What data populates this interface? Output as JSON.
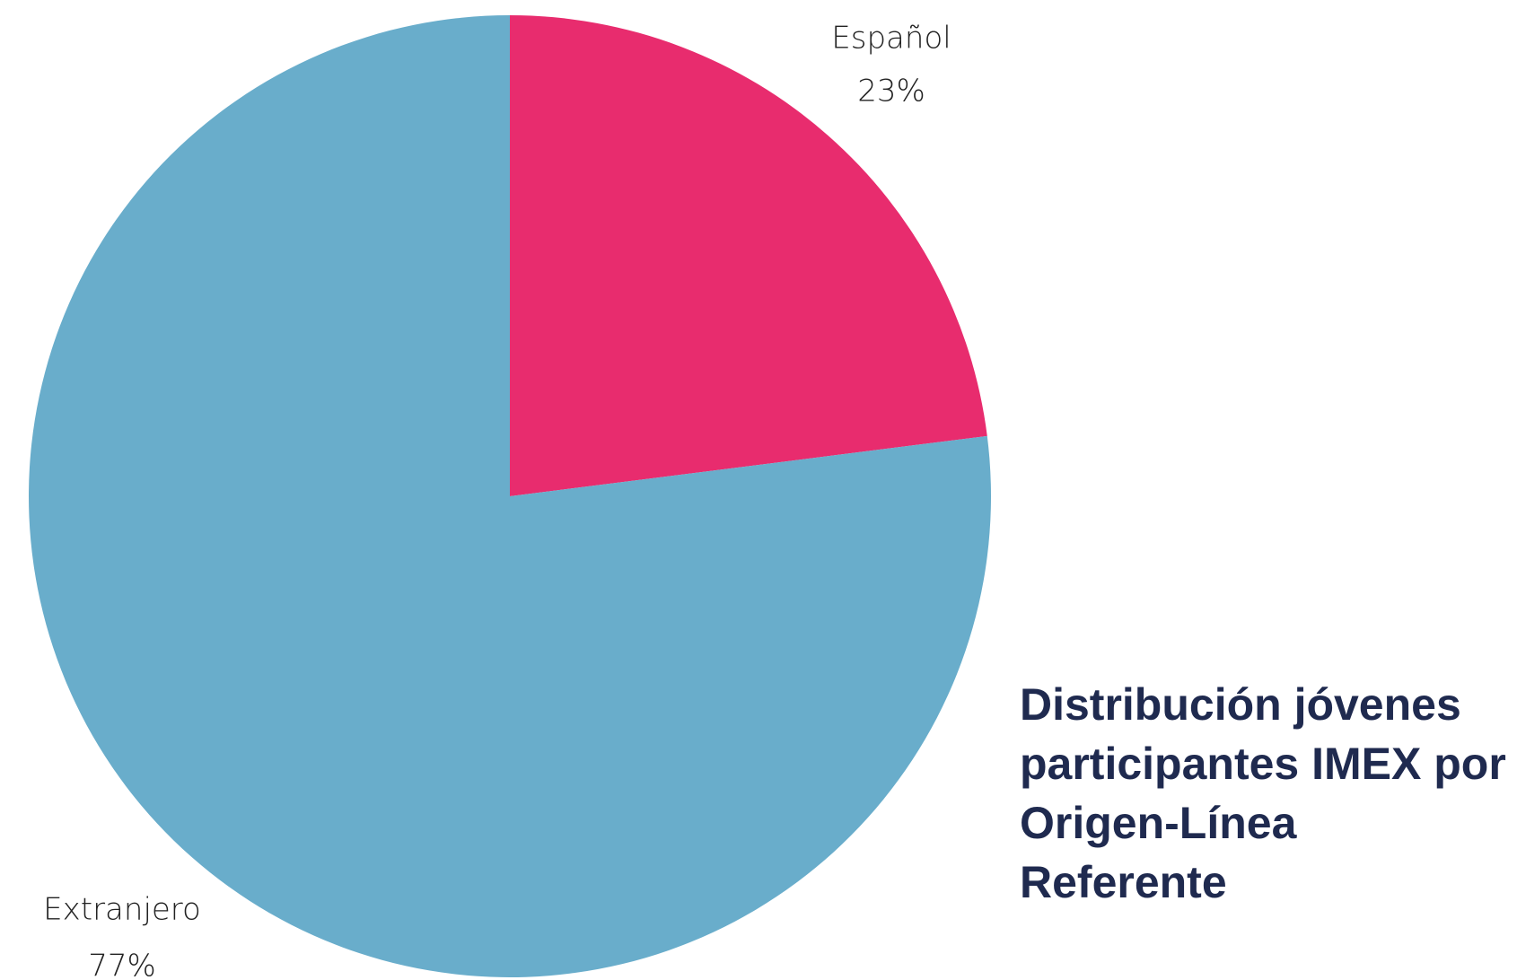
{
  "chart_data": {
    "type": "pie",
    "title": "Distribución jóvenes participantes IMEX por Origen-Línea Referente",
    "categories": [
      "Español",
      "Extranjero"
    ],
    "values": [
      23,
      77
    ],
    "value_labels": [
      "23%",
      "77%"
    ],
    "colors": [
      "#e82c6e",
      "#69adcb"
    ]
  }
}
